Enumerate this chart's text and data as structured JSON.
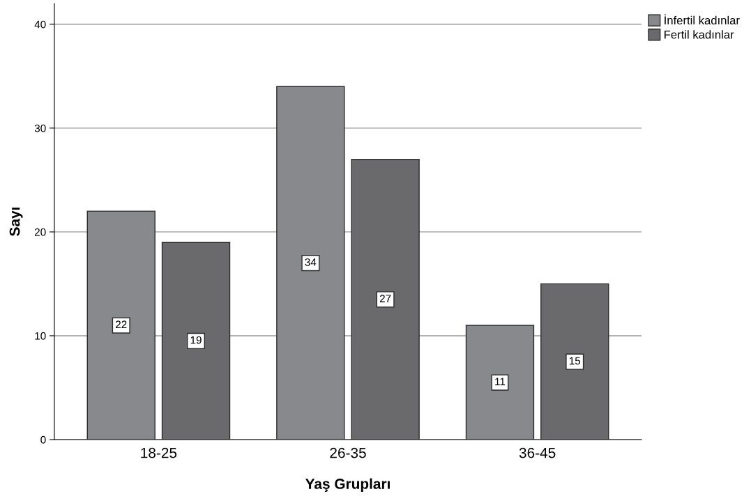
{
  "chart_data": {
    "type": "bar",
    "xlabel": "Yaş Grupları",
    "ylabel": "Sayı",
    "categories": [
      "18-25",
      "26-35",
      "36-45"
    ],
    "series": [
      {
        "name": "İnfertil kadınlar",
        "color": "#88898d",
        "values": [
          22,
          34,
          11
        ]
      },
      {
        "name": "Fertil kadınlar",
        "color": "#6a6a6c",
        "values": [
          19,
          27,
          15
        ]
      }
    ],
    "ylim": [
      0,
      42
    ],
    "yticks": [
      0,
      10,
      20,
      30,
      40
    ],
    "grid": "y",
    "legend": "top right",
    "data_labels": true
  }
}
